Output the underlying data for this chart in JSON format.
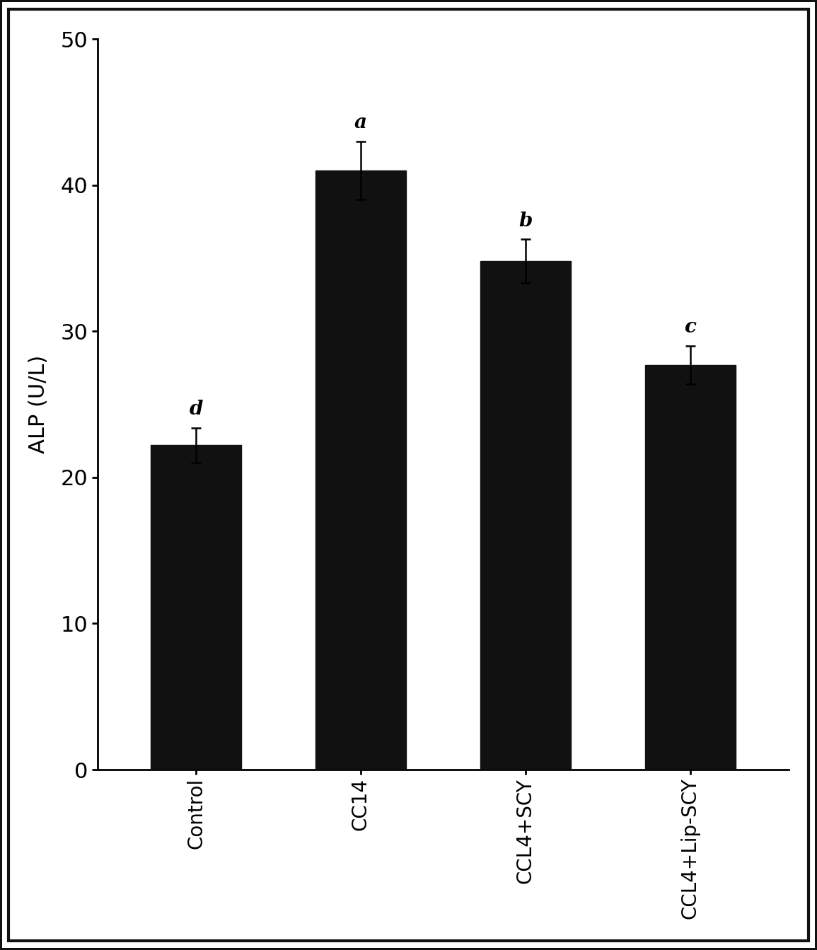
{
  "categories": [
    "Control",
    "CC14",
    "CCL4+SCY",
    "CCL4+Lip-SCY"
  ],
  "values": [
    22.2,
    41.0,
    34.8,
    27.7
  ],
  "errors": [
    1.2,
    2.0,
    1.5,
    1.3
  ],
  "letters": [
    "d",
    "a",
    "b",
    "c"
  ],
  "bar_color": "#111111",
  "ylabel": "ALP (U/L)",
  "ylim": [
    0,
    50
  ],
  "yticks": [
    0,
    10,
    20,
    30,
    40,
    50
  ],
  "background_color": "#ffffff",
  "bar_width": 0.55,
  "letter_fontsize": 20,
  "ylabel_fontsize": 22,
  "tick_fontsize": 22,
  "xtick_fontsize": 20,
  "error_capsize": 5,
  "error_linewidth": 1.8,
  "figure_border_color": "#111111",
  "figure_border_linewidth": 3
}
